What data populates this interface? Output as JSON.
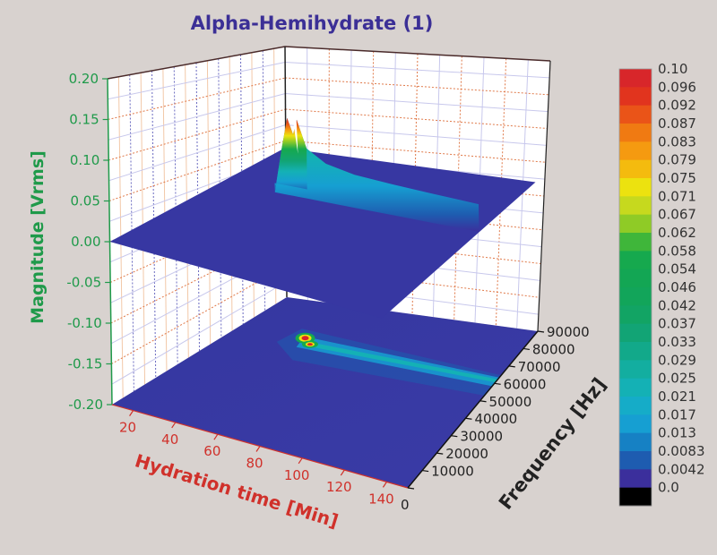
{
  "chart_data": {
    "type": "surface3d",
    "title": "Alpha-Hemihydrate (1)",
    "xlabel": "Hydration time [Min]",
    "ylabel": "Frequency [Hz]",
    "zlabel": "Magnitude [Vrms]",
    "x_ticks": [
      "20",
      "40",
      "60",
      "80",
      "100",
      "120",
      "140"
    ],
    "y_ticks": [
      "0",
      "10000",
      "20000",
      "30000",
      "40000",
      "50000",
      "60000",
      "70000",
      "80000",
      "90000"
    ],
    "z_ticks": [
      "0.20",
      "0.15",
      "0.10",
      "0.05",
      "0.00",
      "-0.05",
      "-0.10",
      "-0.15",
      "-0.20"
    ],
    "xlim": [
      10,
      150
    ],
    "ylim": [
      0,
      90000
    ],
    "zlim": [
      -0.2,
      0.2
    ],
    "surface_baseline": 0.0,
    "contour_projection_level": -0.2,
    "peak": {
      "time_min": 45,
      "frequency_hz": 65000,
      "magnitude_vrms": 0.1,
      "note": "double peak, clipped at colorbar max"
    },
    "ridge": {
      "frequency_hz": 62000,
      "time_range_min": [
        40,
        150
      ],
      "magnitude_vrms_range": [
        0.03,
        0.045
      ]
    },
    "profile": [
      {
        "time_min": 38,
        "magnitude": 0.0
      },
      {
        "time_min": 42,
        "magnitude": 0.06
      },
      {
        "time_min": 45,
        "magnitude": 0.1
      },
      {
        "time_min": 48,
        "magnitude": 0.08
      },
      {
        "time_min": 50,
        "magnitude": 0.1
      },
      {
        "time_min": 55,
        "magnitude": 0.065
      },
      {
        "time_min": 65,
        "magnitude": 0.05
      },
      {
        "time_min": 80,
        "magnitude": 0.043
      },
      {
        "time_min": 100,
        "magnitude": 0.04
      },
      {
        "time_min": 120,
        "magnitude": 0.038
      },
      {
        "time_min": 145,
        "magnitude": 0.036
      }
    ],
    "colorbar": {
      "labels": [
        "0.10",
        "0.096",
        "0.092",
        "0.087",
        "0.083",
        "0.079",
        "0.075",
        "0.071",
        "0.067",
        "0.062",
        "0.058",
        "0.054",
        "0.046",
        "0.042",
        "0.037",
        "0.033",
        "0.029",
        "0.025",
        "0.021",
        "0.017",
        "0.013",
        "0.0083",
        "0.0042",
        "0.0"
      ],
      "colors": [
        "#d8262a",
        "#e1341e",
        "#ea5418",
        "#f07a12",
        "#f59a10",
        "#f4bb0e",
        "#ece20f",
        "#c6d91e",
        "#8fcb26",
        "#3fb63a",
        "#16a94e",
        "#13a654",
        "#12a55a",
        "#12a464",
        "#12a475",
        "#12a98a",
        "#13aea0",
        "#14b1b5",
        "#15acc8",
        "#169fd2",
        "#1681c4",
        "#1e5cb0",
        "#3b2f9c",
        "#000000"
      ]
    }
  }
}
